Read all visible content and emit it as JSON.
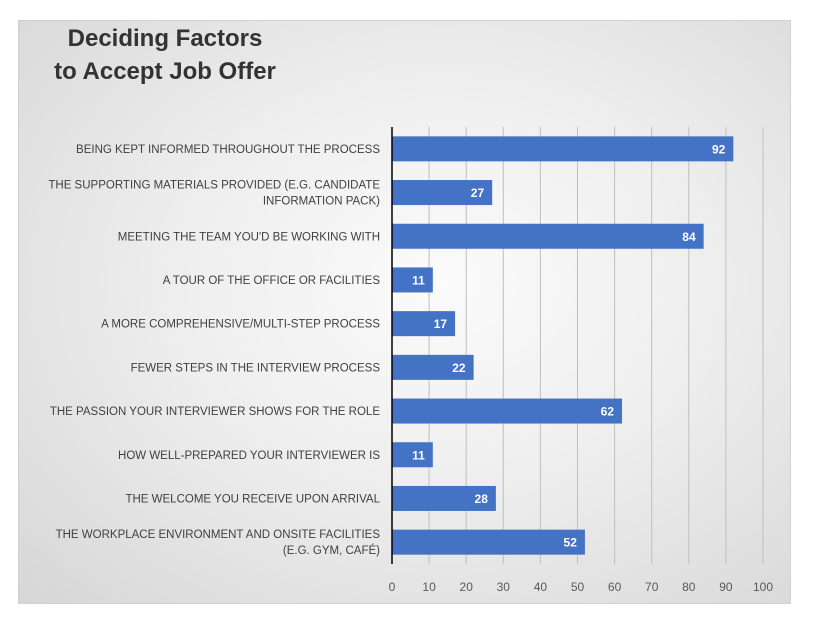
{
  "chart_data": {
    "type": "bar",
    "orientation": "horizontal",
    "title": "Deciding Factors\nto Accept Job Offer",
    "categories": [
      [
        "BEING KEPT INFORMED THROUGHOUT THE PROCESS"
      ],
      [
        "THE SUPPORTING MATERIALS PROVIDED (E.G. CANDIDATE",
        "INFORMATION PACK)"
      ],
      [
        "MEETING THE TEAM YOU'D BE WORKING WITH"
      ],
      [
        "A TOUR OF THE OFFICE OR FACILITIES"
      ],
      [
        "A MORE COMPREHENSIVE/MULTI-STEP PROCESS"
      ],
      [
        "FEWER STEPS IN THE INTERVIEW PROCESS"
      ],
      [
        "THE PASSION YOUR INTERVIEWER SHOWS FOR THE ROLE"
      ],
      [
        "HOW WELL-PREPARED YOUR INTERVIEWER IS"
      ],
      [
        "THE WELCOME YOU RECEIVE UPON ARRIVAL"
      ],
      [
        "THE WORKPLACE ENVIRONMENT AND ONSITE FACILITIES",
        "(E.G. GYM, CAFÉ)"
      ]
    ],
    "values": [
      92,
      27,
      84,
      11,
      17,
      22,
      62,
      11,
      28,
      52
    ],
    "data_labels": [
      "92",
      "27",
      "84",
      "11",
      "17",
      "22",
      "62",
      "11",
      "28",
      "52"
    ],
    "xlim": [
      0,
      100
    ],
    "xticks": [
      "0",
      "10",
      "20",
      "30",
      "40",
      "50",
      "60",
      "70",
      "80",
      "90",
      "100"
    ],
    "grid": "vertical",
    "legend": "none",
    "bar_color": "#4472C4",
    "axis_color": "#000000",
    "grid_color": "#bfbfbf"
  }
}
